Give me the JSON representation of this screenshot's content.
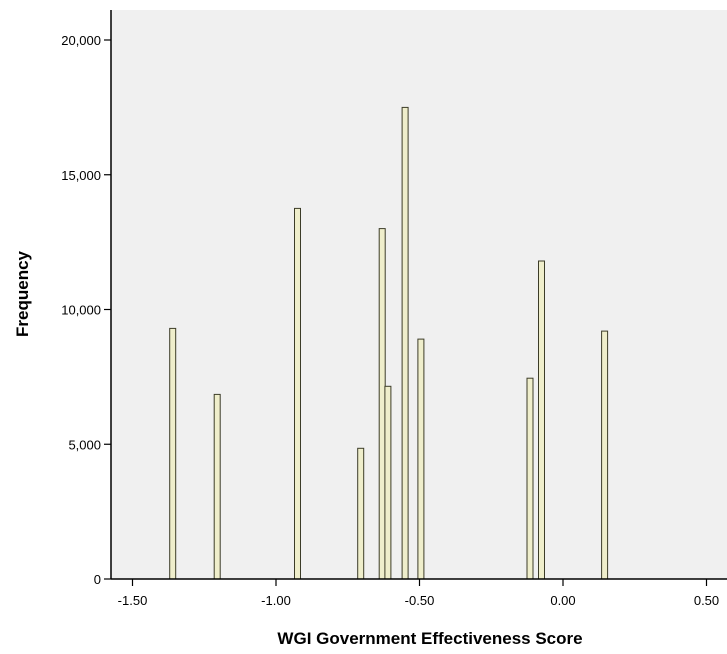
{
  "chart_data": {
    "type": "bar",
    "title": "",
    "xlabel": "WGI Government Effectiveness Score",
    "ylabel": "Frequency",
    "xlim": [
      -1.62,
      0.6
    ],
    "ylim": [
      0,
      21000
    ],
    "xticks": [
      -1.5,
      -1.0,
      -0.5,
      0.0,
      0.5
    ],
    "xtick_labels": [
      "-1.50",
      "-1.00",
      "-0.50",
      "0.00",
      "0.50"
    ],
    "yticks": [
      0,
      5000,
      10000,
      15000,
      20000
    ],
    "ytick_labels": [
      "0",
      "5,000",
      "10,000",
      "15,000",
      "20,000"
    ],
    "grid": false,
    "colors": {
      "plot_background": "#f0f0f0",
      "bar_fill": "#efeecb",
      "bar_stroke": "#3c3c28",
      "axis": "#000000"
    },
    "bars": [
      {
        "x": -1.36,
        "value": 9300
      },
      {
        "x": -1.205,
        "value": 6850
      },
      {
        "x": -0.925,
        "value": 13750
      },
      {
        "x": -0.705,
        "value": 4850
      },
      {
        "x": -0.63,
        "value": 13000
      },
      {
        "x": -0.61,
        "value": 7150
      },
      {
        "x": -0.55,
        "value": 17500
      },
      {
        "x": -0.495,
        "value": 8900
      },
      {
        "x": -0.115,
        "value": 7450
      },
      {
        "x": -0.075,
        "value": 11800
      },
      {
        "x": 0.145,
        "value": 9200
      }
    ]
  }
}
